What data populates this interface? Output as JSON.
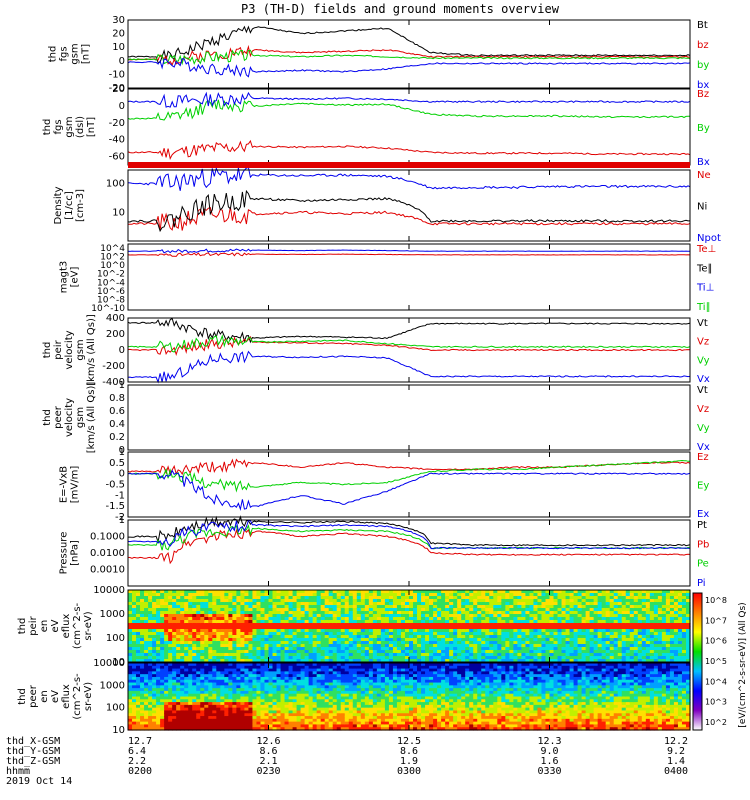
{
  "title": "P3 (TH-D) fields and ground moments overview",
  "colors": {
    "black": "#000000",
    "red": "#e00000",
    "green": "#00d000",
    "blue": "#0000ee"
  },
  "chart_data": [
    {
      "type": "line",
      "ylabel": [
        "thd",
        "fgs",
        "gsm",
        "[nT]"
      ],
      "ylim": [
        -20,
        30
      ],
      "yticks": [
        -20,
        -10,
        0,
        10,
        20,
        30
      ],
      "legend": [
        {
          "name": "Bt",
          "color": "black"
        },
        {
          "name": "bz",
          "color": "red"
        },
        {
          "name": "by",
          "color": "green"
        },
        {
          "name": "bx",
          "color": "blue"
        }
      ],
      "series": [
        {
          "name": "Bt",
          "color": "black",
          "values": [
            3,
            3,
            15,
            25,
            20,
            22,
            24,
            6,
            4,
            4,
            4,
            4,
            4,
            4
          ]
        },
        {
          "name": "bz",
          "color": "red",
          "values": [
            1,
            1,
            5,
            8,
            6,
            7,
            8,
            3,
            3,
            3,
            3,
            3,
            3,
            3
          ]
        },
        {
          "name": "by",
          "color": "green",
          "values": [
            1,
            1,
            3,
            4,
            3,
            4,
            3,
            2,
            2,
            2,
            2,
            2,
            2,
            2
          ]
        },
        {
          "name": "bx",
          "color": "blue",
          "values": [
            -1,
            -1,
            -6,
            -8,
            -7,
            -8,
            -6,
            -2,
            -2,
            -2,
            -2,
            -2,
            -2,
            -2
          ]
        }
      ]
    },
    {
      "type": "line",
      "ylabel": [
        "thd",
        "fgs",
        "gsm",
        "(dsl)",
        "[nT]"
      ],
      "ylim": [
        -70,
        20
      ],
      "yticks": [
        -60,
        -40,
        -20,
        0,
        20
      ],
      "legend": [
        {
          "name": "Bz",
          "color": "red"
        },
        {
          "name": "By",
          "color": "green"
        },
        {
          "name": "Bx",
          "color": "blue"
        }
      ],
      "series": [
        {
          "name": "Bz",
          "color": "red",
          "values": [
            -55,
            -55,
            -50,
            -48,
            -49,
            -48,
            -50,
            -55,
            -56,
            -56,
            -56,
            -57,
            -57,
            -57
          ]
        },
        {
          "name": "By",
          "color": "green",
          "values": [
            -15,
            -15,
            2,
            0,
            3,
            1,
            2,
            -10,
            -12,
            -12,
            -12,
            -13,
            -13,
            -13
          ]
        },
        {
          "name": "Bx",
          "color": "blue",
          "values": [
            5,
            5,
            8,
            9,
            8,
            9,
            8,
            5,
            5,
            5,
            5,
            5,
            5,
            5
          ]
        }
      ]
    },
    {
      "type": "line",
      "ylabel": [
        "Density",
        "[1/cc]",
        "[cm-3]"
      ],
      "ylim": [
        1,
        300
      ],
      "scale": "log",
      "yticks": [
        10,
        100
      ],
      "legend": [
        {
          "name": "Ne",
          "color": "red"
        },
        {
          "name": "Ni",
          "color": "black"
        },
        {
          "name": "Npot",
          "color": "blue"
        }
      ],
      "series": [
        {
          "name": "Ne",
          "color": "red",
          "values": [
            4,
            4,
            8,
            9,
            10,
            9,
            10,
            4,
            4,
            4,
            4,
            4,
            4,
            4
          ]
        },
        {
          "name": "Ni",
          "color": "black",
          "values": [
            5,
            5,
            20,
            30,
            25,
            28,
            30,
            5,
            5,
            5,
            5,
            5,
            5,
            5
          ]
        },
        {
          "name": "Npot",
          "color": "blue",
          "values": [
            100,
            100,
            180,
            200,
            190,
            200,
            180,
            70,
            75,
            75,
            80,
            80,
            80,
            80
          ]
        }
      ]
    },
    {
      "type": "line",
      "ylabel": [
        "magt3",
        "[eV]"
      ],
      "ylim": [
        1e-10,
        10000
      ],
      "scale": "log",
      "yticks_text": [
        "10^4",
        "10^2",
        "10^0",
        "10^-2",
        "10^-4",
        "10^-6",
        "10^-8",
        "10^-10"
      ],
      "legend": [
        {
          "name": "Te⊥",
          "color": "red"
        },
        {
          "name": "Te∥",
          "color": "black"
        },
        {
          "name": "Ti⊥",
          "color": "blue"
        },
        {
          "name": "Ti∥",
          "color": "green"
        }
      ],
      "series": [
        {
          "name": "Te⊥",
          "color": "red",
          "values": [
            50,
            50,
            60,
            70,
            60,
            70,
            60,
            50,
            50,
            50,
            50,
            50,
            50,
            50
          ]
        },
        {
          "name": "Ti⊥",
          "color": "blue",
          "values": [
            300,
            300,
            400,
            500,
            400,
            500,
            400,
            300,
            300,
            300,
            300,
            300,
            300,
            300
          ]
        }
      ]
    },
    {
      "type": "line",
      "ylabel": [
        "thd",
        "peir",
        "velocity",
        "gsm",
        "[km/s (All Qs)]"
      ],
      "ylim": [
        -400,
        400
      ],
      "yticks": [
        -400,
        -200,
        0,
        200,
        400
      ],
      "legend": [
        {
          "name": "Vt",
          "color": "black"
        },
        {
          "name": "Vz",
          "color": "red"
        },
        {
          "name": "Vy",
          "color": "green"
        },
        {
          "name": "Vx",
          "color": "blue"
        }
      ],
      "series": [
        {
          "name": "Vt",
          "color": "black",
          "values": [
            340,
            340,
            180,
            150,
            170,
            160,
            150,
            330,
            330,
            330,
            330,
            330,
            330,
            330
          ]
        },
        {
          "name": "Vz",
          "color": "red",
          "values": [
            0,
            0,
            80,
            100,
            90,
            80,
            60,
            0,
            0,
            0,
            0,
            0,
            0,
            0
          ]
        },
        {
          "name": "Vy",
          "color": "green",
          "values": [
            40,
            40,
            120,
            100,
            110,
            120,
            80,
            40,
            40,
            40,
            40,
            40,
            40,
            40
          ]
        },
        {
          "name": "Vx",
          "color": "blue",
          "values": [
            -340,
            -340,
            -100,
            -80,
            -90,
            -80,
            -100,
            -330,
            -330,
            -330,
            -330,
            -330,
            -330,
            -330
          ]
        }
      ]
    },
    {
      "type": "line",
      "ylabel": [
        "thd",
        "peer",
        "velocity",
        "gsm",
        "[km/s (All Qs)]"
      ],
      "ylim": [
        0,
        1
      ],
      "yticks": [
        0,
        0.2,
        0.4,
        0.6,
        0.8,
        1.0
      ],
      "legend": [
        {
          "name": "Vt",
          "color": "black"
        },
        {
          "name": "Vz",
          "color": "red"
        },
        {
          "name": "Vy",
          "color": "green"
        },
        {
          "name": "Vx",
          "color": "blue"
        }
      ],
      "series": []
    },
    {
      "type": "line",
      "ylabel": [
        "E=-VxB",
        "[mV/m]"
      ],
      "ylim": [
        -2,
        1
      ],
      "yticks": [
        -2,
        -1.5,
        -1,
        -0.5,
        0,
        0.5,
        1
      ],
      "legend": [
        {
          "name": "Ez",
          "color": "red"
        },
        {
          "name": "Ey",
          "color": "green"
        },
        {
          "name": "Ex",
          "color": "blue"
        }
      ],
      "series": [
        {
          "name": "Ez",
          "color": "red",
          "values": [
            0.1,
            0.1,
            0.3,
            0.5,
            0.3,
            0.5,
            0.3,
            0.2,
            0.2,
            0.3,
            0.3,
            0.4,
            0.5,
            0.5
          ]
        },
        {
          "name": "Ey",
          "color": "green",
          "values": [
            0,
            0,
            -0.5,
            -0.6,
            -0.4,
            -0.5,
            -0.4,
            0.1,
            0.2,
            0.2,
            0.3,
            0.4,
            0.5,
            0.6
          ]
        },
        {
          "name": "Ex",
          "color": "blue",
          "values": [
            0,
            0,
            -1.2,
            -1.5,
            -1.0,
            -1.4,
            -0.8,
            0,
            0,
            0,
            0,
            0,
            0,
            0
          ]
        }
      ]
    },
    {
      "type": "line",
      "ylabel": [
        "Pressure",
        "[nPa]"
      ],
      "ylim": [
        0.0001,
        1
      ],
      "scale": "log",
      "yticks": [
        0.001,
        0.01,
        0.1,
        1.0
      ],
      "legend": [
        {
          "name": "Pt",
          "color": "black"
        },
        {
          "name": "Pb",
          "color": "red"
        },
        {
          "name": "Pe",
          "color": "green"
        },
        {
          "name": "Pi",
          "color": "blue"
        }
      ],
      "series": [
        {
          "name": "Pt",
          "color": "black",
          "values": [
            0.1,
            0.1,
            0.7,
            0.8,
            0.7,
            0.8,
            0.6,
            0.04,
            0.03,
            0.03,
            0.03,
            0.03,
            0.03,
            0.03
          ]
        },
        {
          "name": "Pb",
          "color": "red",
          "values": [
            0.005,
            0.005,
            0.1,
            0.2,
            0.1,
            0.15,
            0.1,
            0.01,
            0.008,
            0.008,
            0.008,
            0.008,
            0.008,
            0.008
          ]
        },
        {
          "name": "Pe",
          "color": "green",
          "values": [
            0.03,
            0.03,
            0.2,
            0.3,
            0.2,
            0.25,
            0.2,
            0.02,
            0.02,
            0.02,
            0.02,
            0.02,
            0.02,
            0.02
          ]
        },
        {
          "name": "Pi",
          "color": "blue",
          "values": [
            0.05,
            0.05,
            0.4,
            0.5,
            0.4,
            0.5,
            0.4,
            0.02,
            0.02,
            0.02,
            0.02,
            0.02,
            0.02,
            0.02
          ]
        }
      ]
    },
    {
      "type": "heatmap",
      "ylabel": [
        "thd",
        "peir",
        "en",
        "eV",
        "eflux",
        "(cm^2-s-",
        "sr-eV)"
      ],
      "ylim": [
        10,
        10000
      ],
      "scale": "log",
      "yticks": [
        10,
        100,
        1000,
        10000
      ]
    },
    {
      "type": "heatmap",
      "ylabel": [
        "thd",
        "peer",
        "en",
        "eV",
        "eflux",
        "(cm^2-s-",
        "sr-eV)"
      ],
      "ylim": [
        10,
        10000
      ],
      "scale": "log",
      "yticks": [
        10,
        100,
        1000,
        10000
      ]
    }
  ],
  "x_axis": {
    "row_labels": [
      "thd_X-GSM",
      "thd_Y-GSM",
      "thd_Z-GSM",
      "hhmm",
      "2019 Oct 14"
    ],
    "ticks": [
      {
        "x": "12.7",
        "y": "6.4",
        "z": "2.2",
        "t": "0200"
      },
      {
        "x": "12.6",
        "y": "8.6",
        "z": "2.1",
        "t": "0230"
      },
      {
        "x": "12.5",
        "y": "8.6",
        "z": "1.9",
        "t": "0300"
      },
      {
        "x": "12.3",
        "y": "9.0",
        "z": "1.6",
        "t": "0330"
      },
      {
        "x": "12.2",
        "y": "9.2",
        "z": "1.4",
        "t": "0400"
      }
    ]
  },
  "colorbar": {
    "label": "[eV/(cm^2-s-sr-eV)] (All Qs)",
    "ticks": [
      "10^8",
      "10^7",
      "10^6",
      "10^5",
      "10^4",
      "10^3",
      "10^2"
    ]
  }
}
